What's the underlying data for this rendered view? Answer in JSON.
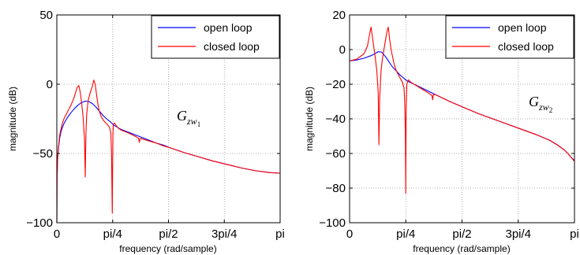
{
  "chart_data": [
    {
      "type": "line",
      "title": "",
      "xlabel": "frequency (rad/sample)",
      "ylabel": "magnitude (dB)",
      "xlim": [
        0,
        3.14159
      ],
      "ylim": [
        -100,
        50
      ],
      "xticks": [
        {
          "value": 0,
          "label": "0"
        },
        {
          "value": 0.7854,
          "label": "pi/4"
        },
        {
          "value": 1.5708,
          "label": "pi/2"
        },
        {
          "value": 2.3562,
          "label": "3pi/4"
        },
        {
          "value": 3.14159,
          "label": "pi"
        }
      ],
      "yticks": [
        {
          "value": -100,
          "label": "−100"
        },
        {
          "value": -50,
          "label": "−50"
        },
        {
          "value": 0,
          "label": "0"
        },
        {
          "value": 50,
          "label": "50"
        }
      ],
      "grid": true,
      "legend_position": "top-right",
      "annotation": {
        "main": "G",
        "sub": "zw",
        "subsub": "1",
        "x": 1.72,
        "y": -8
      },
      "series": [
        {
          "name": "open loop",
          "color": "#0000ff",
          "x": [
            0.0,
            0.003,
            0.01,
            0.02,
            0.04,
            0.06,
            0.08,
            0.1,
            0.15,
            0.2,
            0.25,
            0.3,
            0.35,
            0.4,
            0.45,
            0.5,
            0.55,
            0.6,
            0.65,
            0.7,
            0.75,
            0.78,
            0.8,
            0.85,
            0.9,
            1.0,
            1.1,
            1.2,
            1.3,
            1.4,
            1.5,
            1.6,
            1.8,
            2.0,
            2.2,
            2.4,
            2.6,
            2.8,
            3.0,
            3.14
          ],
          "y": [
            -100.0,
            -70.0,
            -55.0,
            -48.0,
            -39.0,
            -34.0,
            -31.0,
            -28.5,
            -24.0,
            -20.5,
            -17.5,
            -15.0,
            -13.2,
            -12.2,
            -12.5,
            -14.0,
            -16.5,
            -19.5,
            -22.5,
            -25.0,
            -27.0,
            -28.5,
            -29.5,
            -31.0,
            -32.5,
            -34.5,
            -36.5,
            -38.5,
            -40.5,
            -42.5,
            -44.0,
            -46.0,
            -49.5,
            -52.5,
            -55.5,
            -58.0,
            -60.5,
            -62.5,
            -63.8,
            -64.2
          ]
        },
        {
          "name": "closed loop",
          "color": "#ff0000",
          "x": [
            0.0,
            0.003,
            0.01,
            0.02,
            0.04,
            0.06,
            0.08,
            0.1,
            0.15,
            0.2,
            0.24,
            0.27,
            0.29,
            0.31,
            0.33,
            0.35,
            0.37,
            0.39,
            0.4,
            0.41,
            0.42,
            0.44,
            0.47,
            0.5,
            0.52,
            0.54,
            0.56,
            0.58,
            0.6,
            0.63,
            0.67,
            0.71,
            0.74,
            0.76,
            0.77,
            0.78,
            0.785,
            0.79,
            0.795,
            0.8,
            0.81,
            0.83,
            0.86,
            0.9,
            1.0,
            1.1,
            1.15,
            1.16,
            1.17,
            1.18,
            1.2,
            1.3,
            1.4,
            1.5,
            1.6,
            1.8,
            2.0,
            2.2,
            2.4,
            2.6,
            2.8,
            3.0,
            3.14
          ],
          "y": [
            -100.0,
            -70.0,
            -55.0,
            -47.0,
            -37.0,
            -32.0,
            -28.0,
            -25.0,
            -20.0,
            -15.0,
            -10.0,
            -5.0,
            -2.0,
            -1.0,
            -6.0,
            -14.0,
            -24.0,
            -40.0,
            -67.0,
            -35.0,
            -22.0,
            -12.0,
            -6.0,
            -1.5,
            3.0,
            0.0,
            -8.0,
            -15.0,
            -20.0,
            -24.0,
            -27.0,
            -29.0,
            -31.0,
            -35.0,
            -50.0,
            -93.0,
            -60.0,
            -35.0,
            -30.0,
            -28.5,
            -28.0,
            -29.5,
            -31.5,
            -33.0,
            -35.0,
            -37.5,
            -39.0,
            -42.0,
            -39.5,
            -39.0,
            -39.5,
            -41.0,
            -42.5,
            -44.5,
            -46.0,
            -49.5,
            -52.5,
            -55.5,
            -58.0,
            -60.5,
            -62.5,
            -63.8,
            -64.2
          ]
        }
      ]
    },
    {
      "type": "line",
      "title": "",
      "xlabel": "frequency (rad/sample)",
      "ylabel": "magnitude (dB)",
      "xlim": [
        0,
        3.14159
      ],
      "ylim": [
        -100,
        20
      ],
      "xticks": [
        {
          "value": 0,
          "label": "0"
        },
        {
          "value": 0.7854,
          "label": "pi/4"
        },
        {
          "value": 1.5708,
          "label": "pi/2"
        },
        {
          "value": 2.3562,
          "label": "3pi/4"
        },
        {
          "value": 3.14159,
          "label": "pi"
        }
      ],
      "yticks": [
        {
          "value": -100,
          "label": "−100"
        },
        {
          "value": -80,
          "label": "−80"
        },
        {
          "value": -60,
          "label": "−60"
        },
        {
          "value": -40,
          "label": "−40"
        },
        {
          "value": -20,
          "label": "−20"
        },
        {
          "value": 0,
          "label": "0"
        },
        {
          "value": 20,
          "label": "20"
        }
      ],
      "grid": true,
      "legend_position": "top-right",
      "annotation": {
        "main": "G",
        "sub": "zw",
        "subsub": "2",
        "x": 2.6,
        "y": -33
      },
      "series": [
        {
          "name": "open loop",
          "color": "#0000ff",
          "x": [
            0.0,
            0.1,
            0.2,
            0.3,
            0.35,
            0.4,
            0.45,
            0.5,
            0.55,
            0.6,
            0.7,
            0.8,
            0.9,
            1.0,
            1.2,
            1.4,
            1.6,
            1.8,
            2.0,
            2.2,
            2.4,
            2.6,
            2.8,
            2.9,
            3.0,
            3.05,
            3.1,
            3.14
          ],
          "y": [
            -6.5,
            -6.0,
            -5.0,
            -3.5,
            -2.5,
            -1.2,
            -1.5,
            -4.0,
            -7.0,
            -10.0,
            -14.5,
            -18.0,
            -20.0,
            -22.0,
            -26.0,
            -30.0,
            -33.5,
            -37.0,
            -40.0,
            -43.0,
            -46.0,
            -49.0,
            -52.5,
            -55.0,
            -58.0,
            -60.0,
            -62.5,
            -64.0
          ]
        },
        {
          "name": "closed loop",
          "color": "#ff0000",
          "x": [
            0.0,
            0.1,
            0.2,
            0.25,
            0.28,
            0.3,
            0.32,
            0.34,
            0.36,
            0.38,
            0.4,
            0.41,
            0.42,
            0.44,
            0.46,
            0.48,
            0.5,
            0.52,
            0.54,
            0.56,
            0.58,
            0.6,
            0.62,
            0.65,
            0.7,
            0.74,
            0.76,
            0.77,
            0.78,
            0.785,
            0.79,
            0.8,
            0.82,
            0.86,
            0.9,
            1.0,
            1.1,
            1.15,
            1.16,
            1.17,
            1.2,
            1.4,
            1.6,
            1.8,
            2.0,
            2.2,
            2.4,
            2.6,
            2.8,
            2.9,
            3.0,
            3.05,
            3.1,
            3.14
          ],
          "y": [
            -6.5,
            -5.5,
            -2.5,
            2.0,
            9.0,
            13.0,
            7.0,
            1.0,
            -5.0,
            -12.0,
            -25.0,
            -55.0,
            -28.0,
            -12.0,
            -5.0,
            0.0,
            5.0,
            10.0,
            13.0,
            6.0,
            0.0,
            -4.0,
            -8.0,
            -12.0,
            -16.0,
            -19.0,
            -22.0,
            -30.0,
            -50.0,
            -83.0,
            -35.0,
            -20.0,
            -17.5,
            -19.0,
            -20.0,
            -22.5,
            -25.0,
            -26.5,
            -29.0,
            -26.0,
            -26.0,
            -30.0,
            -33.5,
            -37.0,
            -40.0,
            -43.0,
            -46.0,
            -49.0,
            -52.5,
            -55.0,
            -58.0,
            -60.0,
            -62.5,
            -64.5
          ]
        }
      ]
    }
  ]
}
